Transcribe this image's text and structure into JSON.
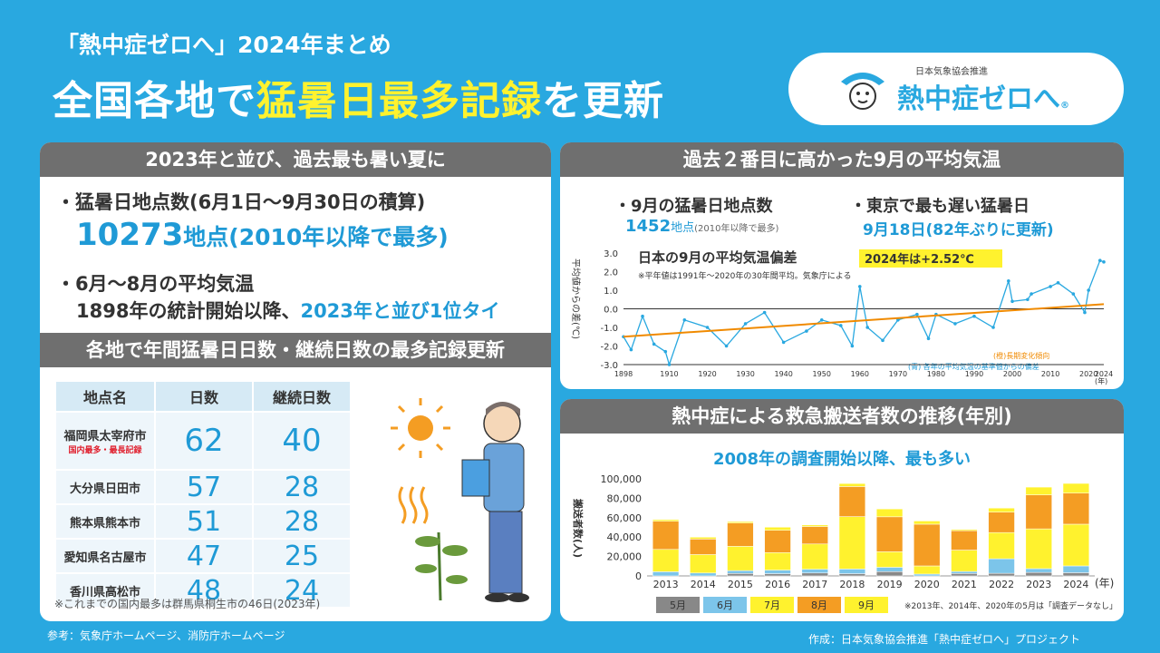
{
  "header": {
    "subtitle": "「熱中症ゼロへ」2024年まとめ",
    "headline_part1": "全国各地で",
    "headline_part2": "猛暑日最多記録",
    "headline_part3": "を更新",
    "logo_org": "日本気象協会推進",
    "logo_name": "熱中症ゼロへ",
    "logo_reg": "®"
  },
  "left_panel": {
    "title": "2023年と並び、過去最も暑い夏に",
    "bullet1": "・猛暑日地点数(6月1日〜9月30日の積算)",
    "bullet1_value": "10273",
    "bullet1_value_suffix": "地点(2010年以降で最多)",
    "bullet2": "・6月〜8月の平均気温",
    "bullet2_line2_a": "1898年の統計開始以降、",
    "bullet2_line2_b": "2023年と並び1位タイ",
    "section2_title": "各地で年間猛暑日日数・継続日数の最多記録更新",
    "table": {
      "headers": [
        "地点名",
        "日数",
        "継続日数"
      ],
      "rows": [
        {
          "loc": "福岡県太宰府市",
          "sub": "国内最多・最長記録",
          "days": "62",
          "streak": "40"
        },
        {
          "loc": "大分県日田市",
          "days": "57",
          "streak": "28"
        },
        {
          "loc": "熊本県熊本市",
          "days": "51",
          "streak": "28"
        },
        {
          "loc": "愛知県名古屋市",
          "days": "47",
          "streak": "25"
        },
        {
          "loc": "香川県高松市",
          "days": "48",
          "streak": "24"
        }
      ]
    },
    "note": "※これまでの国内最多は群馬県桐生市の46日(2023年)"
  },
  "right_top_panel": {
    "title": "過去２番目に高かった9月の平均気温",
    "stat1_label": "・9月の猛暑日地点数",
    "stat1_value": "1452",
    "stat1_unit": "地点",
    "stat1_note": "(2010年以降で最多)",
    "stat2_label": "・東京で最も遅い猛暑日",
    "stat2_value": "9月18日(82年ぶりに更新)"
  },
  "right_bottom_panel": {
    "title": "熱中症による救急搬送者数の推移(年別)",
    "subtitle": "2008年の調査開始以降、最も多い"
  },
  "footer": {
    "left": "参考：気象庁ホームページ、消防庁ホームページ",
    "right": "作成：日本気象協会推進「熱中症ゼロへ」プロジェクト"
  },
  "chart_data": [
    {
      "type": "line",
      "title": "日本の9月の平均気温偏差",
      "badge": "2024年は+2.52℃",
      "note": "※平年値は1991年〜2020年の30年間平均。気象庁による",
      "ylabel": "平均値からの差(℃)",
      "xlabel": "(年)",
      "ylim": [
        -3.0,
        3.0
      ],
      "yticks": [
        "3.0",
        "2.0",
        "1.0",
        "0.0",
        "-1.0",
        "-2.0",
        "-3.0"
      ],
      "xticks": [
        "1898",
        "1910",
        "1920",
        "1930",
        "1940",
        "1950",
        "1960",
        "1970",
        "1980",
        "1990",
        "2000",
        "2010",
        "2020",
        "2024"
      ],
      "xrange": [
        1898,
        2024
      ],
      "legend": [
        "(橙)長期変化傾向",
        "(青) 各年の平均気温の基準値からの偏差"
      ],
      "trend": {
        "start": [
          1898,
          -1.5
        ],
        "end": [
          2024,
          0.25
        ]
      },
      "series_key_points": [
        [
          1898,
          -1.5
        ],
        [
          1900,
          -2.2
        ],
        [
          1903,
          -0.4
        ],
        [
          1906,
          -1.9
        ],
        [
          1909,
          -2.3
        ],
        [
          1910,
          -3.0
        ],
        [
          1914,
          -0.6
        ],
        [
          1920,
          -1.0
        ],
        [
          1925,
          -2.0
        ],
        [
          1930,
          -0.8
        ],
        [
          1935,
          -0.2
        ],
        [
          1940,
          -1.8
        ],
        [
          1946,
          -1.2
        ],
        [
          1950,
          -0.6
        ],
        [
          1955,
          -0.9
        ],
        [
          1958,
          -2.0
        ],
        [
          1960,
          1.2
        ],
        [
          1962,
          -1.0
        ],
        [
          1966,
          -1.7
        ],
        [
          1970,
          -0.6
        ],
        [
          1975,
          -0.3
        ],
        [
          1978,
          -1.6
        ],
        [
          1980,
          -0.3
        ],
        [
          1985,
          -0.8
        ],
        [
          1990,
          -0.4
        ],
        [
          1995,
          -1.0
        ],
        [
          1999,
          1.5
        ],
        [
          2000,
          0.4
        ],
        [
          2004,
          0.5
        ],
        [
          2005,
          0.8
        ],
        [
          2010,
          1.2
        ],
        [
          2012,
          1.4
        ],
        [
          2016,
          0.8
        ],
        [
          2019,
          -0.2
        ],
        [
          2020,
          1.0
        ],
        [
          2023,
          2.6
        ],
        [
          2024,
          2.52
        ]
      ]
    },
    {
      "type": "bar",
      "stacked": true,
      "categories": [
        "2013",
        "2014",
        "2015",
        "2016",
        "2017",
        "2018",
        "2019",
        "2020",
        "2021",
        "2022",
        "2023",
        "2024"
      ],
      "xlabel": "(年)",
      "ylabel": "搬送者数(人)",
      "ylim": [
        0,
        100000
      ],
      "yticks": [
        "100,000",
        "80,000",
        "60,000",
        "40,000",
        "20,000",
        "0"
      ],
      "series": [
        {
          "name": "5月",
          "color": "#888888",
          "values": [
            0,
            0,
            2500,
            2300,
            3000,
            2300,
            4400,
            0,
            2500,
            2700,
            3600,
            3300
          ]
        },
        {
          "name": "6月",
          "color": "#7cc5ea",
          "values": [
            4300,
            3000,
            3000,
            3700,
            3900,
            4800,
            4500,
            1900,
            2100,
            15000,
            3900,
            7000
          ]
        },
        {
          "name": "7月",
          "color": "#fff22e",
          "values": [
            23000,
            19000,
            25000,
            18000,
            26000,
            54000,
            16000,
            8400,
            22000,
            27000,
            41000,
            43000
          ]
        },
        {
          "name": "8月",
          "color": "#f49d23",
          "values": [
            29000,
            16000,
            24000,
            23000,
            18000,
            31000,
            36000,
            43000,
            20000,
            21000,
            35000,
            32000
          ]
        },
        {
          "name": "9月",
          "color": "#fff22e",
          "values": [
            1700,
            1900,
            1500,
            3200,
            1600,
            3100,
            8100,
            3300,
            1200,
            4200,
            8000,
            10000
          ]
        }
      ],
      "legend": [
        "5月",
        "6月",
        "7月",
        "8月",
        "9月"
      ],
      "note": "※2013年、2014年、2020年の5月は「調査データなし」"
    }
  ]
}
